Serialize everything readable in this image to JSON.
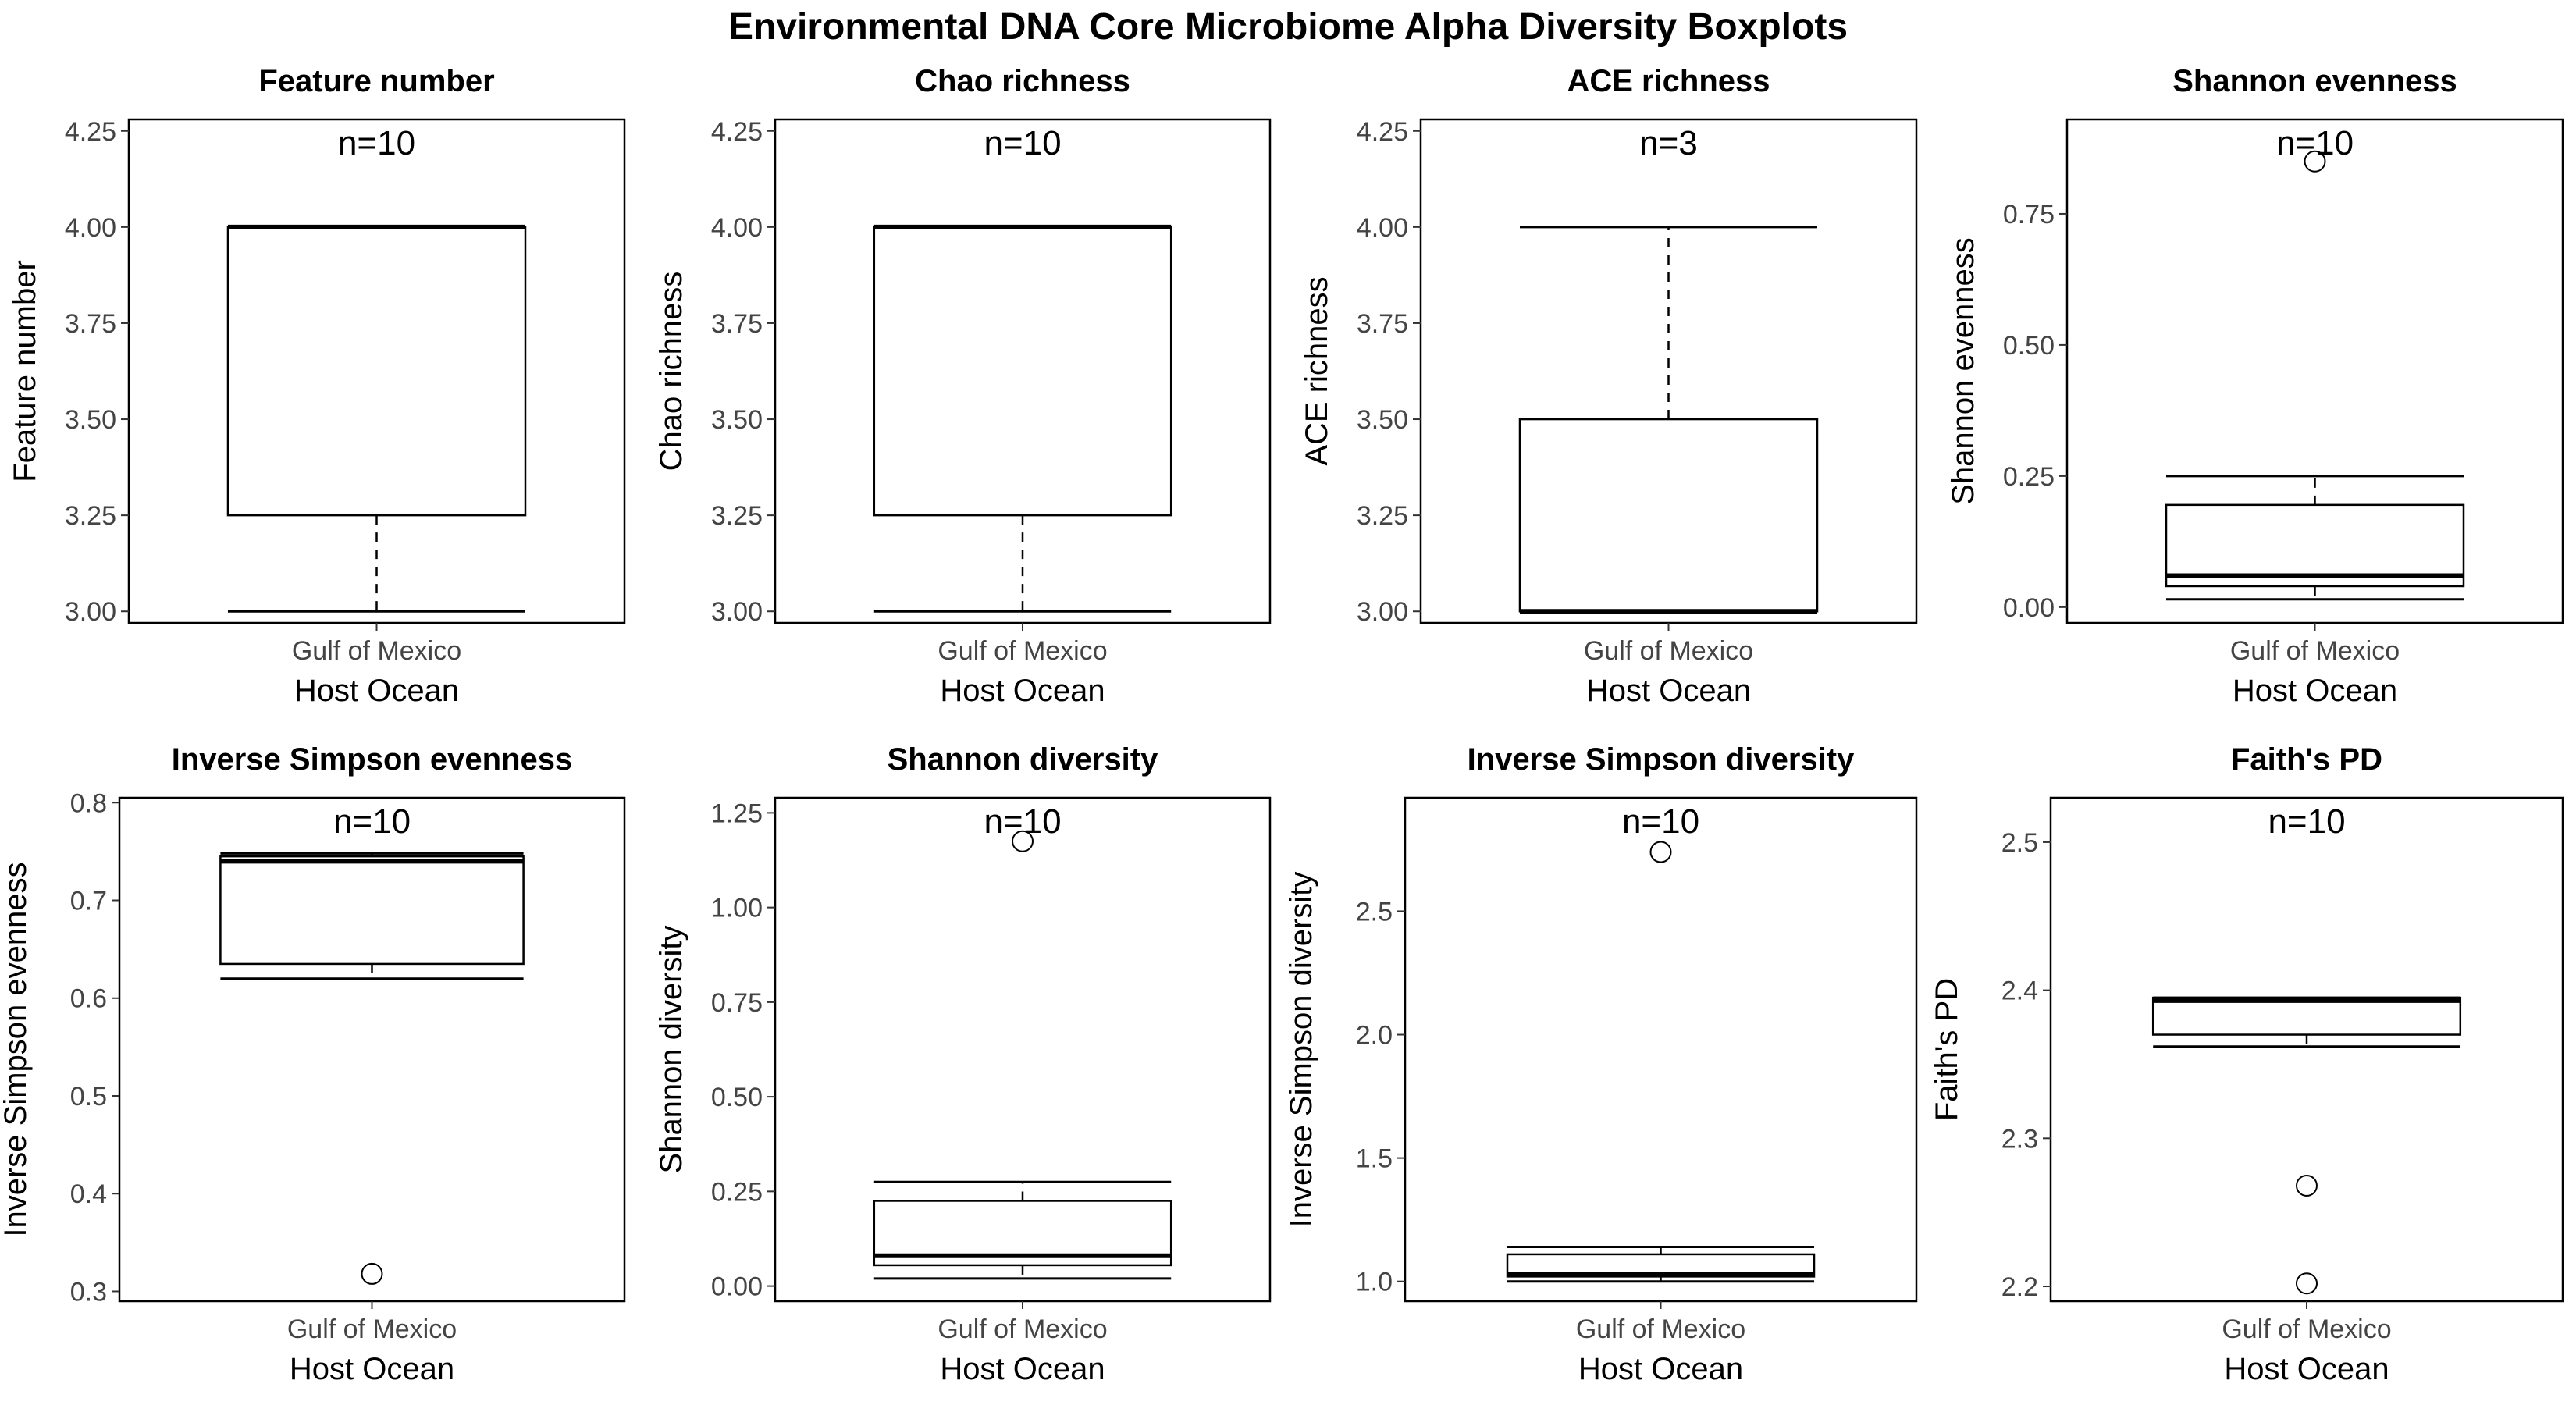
{
  "title": "Environmental DNA Core Microbiome Alpha Diversity Boxplots",
  "chart_data": [
    {
      "type": "box",
      "title": "Feature number",
      "ylabel": "Feature number",
      "xlabel": "Host Ocean",
      "category": "Gulf of Mexico",
      "n_label": "n=10",
      "ylim": [
        2.97,
        4.28
      ],
      "yticks": [
        3.0,
        3.25,
        3.5,
        3.75,
        4.0,
        4.25
      ],
      "tick_decimals": 2,
      "whisker_low": 3.0,
      "q1": 3.25,
      "median": 4.0,
      "q3": 4.0,
      "whisker_high": 4.0,
      "outliers": []
    },
    {
      "type": "box",
      "title": "Chao richness",
      "ylabel": "Chao richness",
      "xlabel": "Host Ocean",
      "category": "Gulf of Mexico",
      "n_label": "n=10",
      "ylim": [
        2.97,
        4.28
      ],
      "yticks": [
        3.0,
        3.25,
        3.5,
        3.75,
        4.0,
        4.25
      ],
      "tick_decimals": 2,
      "whisker_low": 3.0,
      "q1": 3.25,
      "median": 4.0,
      "q3": 4.0,
      "whisker_high": 4.0,
      "outliers": []
    },
    {
      "type": "box",
      "title": "ACE richness",
      "ylabel": "ACE richness",
      "xlabel": "Host Ocean",
      "category": "Gulf of Mexico",
      "n_label": "n=3",
      "ylim": [
        2.97,
        4.28
      ],
      "yticks": [
        3.0,
        3.25,
        3.5,
        3.75,
        4.0,
        4.25
      ],
      "tick_decimals": 2,
      "whisker_low": 3.0,
      "q1": 3.0,
      "median": 3.0,
      "q3": 3.5,
      "whisker_high": 4.0,
      "outliers": []
    },
    {
      "type": "box",
      "title": "Shannon evenness",
      "ylabel": "Shannon evenness",
      "xlabel": "Host Ocean",
      "category": "Gulf of Mexico",
      "n_label": "n=10",
      "ylim": [
        -0.03,
        0.93
      ],
      "yticks": [
        0.0,
        0.25,
        0.5,
        0.75
      ],
      "tick_decimals": 2,
      "whisker_low": 0.015,
      "q1": 0.04,
      "median": 0.06,
      "q3": 0.195,
      "whisker_high": 0.25,
      "outliers": [
        0.85
      ]
    },
    {
      "type": "box",
      "title": "Inverse Simpson evenness",
      "ylabel": "Inverse Simpson evenness",
      "xlabel": "Host Ocean",
      "category": "Gulf of Mexico",
      "n_label": "n=10",
      "ylim": [
        0.29,
        0.805
      ],
      "yticks": [
        0.3,
        0.4,
        0.5,
        0.6,
        0.7,
        0.8
      ],
      "tick_decimals": 1,
      "whisker_low": 0.62,
      "q1": 0.635,
      "median": 0.74,
      "q3": 0.745,
      "whisker_high": 0.748,
      "outliers": [
        0.318
      ]
    },
    {
      "type": "box",
      "title": "Shannon diversity",
      "ylabel": "Shannon diversity",
      "xlabel": "Host Ocean",
      "category": "Gulf of Mexico",
      "n_label": "n=10",
      "ylim": [
        -0.04,
        1.29
      ],
      "yticks": [
        0.0,
        0.25,
        0.5,
        0.75,
        1.0,
        1.25
      ],
      "tick_decimals": 2,
      "whisker_low": 0.02,
      "q1": 0.055,
      "median": 0.08,
      "q3": 0.225,
      "whisker_high": 0.275,
      "outliers": [
        1.175
      ]
    },
    {
      "type": "box",
      "title": "Inverse Simpson diversity",
      "ylabel": "Inverse Simpson diversity",
      "xlabel": "Host Ocean",
      "category": "Gulf of Mexico",
      "n_label": "n=10",
      "ylim": [
        0.92,
        2.96
      ],
      "yticks": [
        1.0,
        1.5,
        2.0,
        2.5
      ],
      "tick_decimals": 1,
      "whisker_low": 1.0,
      "q1": 1.02,
      "median": 1.03,
      "q3": 1.11,
      "whisker_high": 1.14,
      "outliers": [
        2.74
      ]
    },
    {
      "type": "box",
      "title": "Faith's PD",
      "ylabel": "Faith's PD",
      "xlabel": "Host Ocean",
      "category": "Gulf of Mexico",
      "n_label": "n=10",
      "ylim": [
        2.19,
        2.53
      ],
      "yticks": [
        2.2,
        2.3,
        2.4,
        2.5
      ],
      "tick_decimals": 1,
      "whisker_low": 2.362,
      "q1": 2.37,
      "median": 2.393,
      "q3": 2.395,
      "whisker_high": 2.395,
      "outliers": [
        2.268,
        2.202
      ]
    }
  ]
}
